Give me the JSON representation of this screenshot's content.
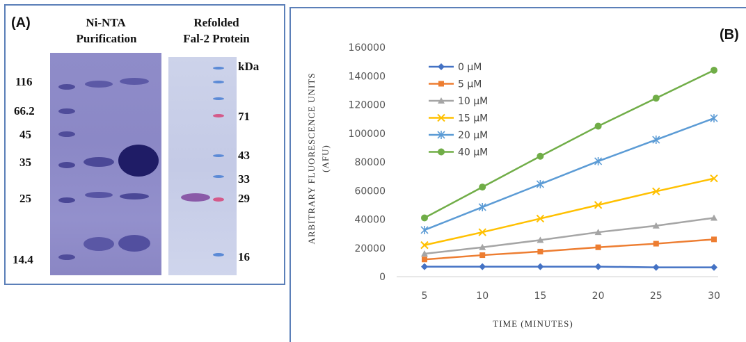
{
  "panel_a": {
    "label": "(A)",
    "title_left_1": "Ni-NTA",
    "title_left_2": "Purification",
    "title_right_1": "Refolded",
    "title_right_2": "Fal-2  Protein",
    "left_markers": [
      "116",
      "66.2",
      "45",
      "35",
      "25",
      "14.4"
    ],
    "right_markers": [
      "kDa",
      "71",
      "43",
      "33",
      "29",
      "16"
    ]
  },
  "panel_b": {
    "label": "(B)"
  },
  "chart_data": {
    "type": "line",
    "title": "",
    "xlabel": "TIME  (MINUTES)",
    "ylabel": "ARBITRARY   FLUORESCENCE   UNITS",
    "ylabel2": "(AFU)",
    "x": [
      5,
      10,
      15,
      20,
      25,
      30
    ],
    "xticks": [
      "5",
      "10",
      "15",
      "20",
      "25",
      "30"
    ],
    "ylim": [
      0,
      160000
    ],
    "yticks": [
      "0",
      "20000",
      "40000",
      "60000",
      "80000",
      "100000",
      "120000",
      "140000",
      "160000"
    ],
    "grid": false,
    "legend_position": "top-left",
    "series": [
      {
        "name": "0 μM",
        "color": "#4472c4",
        "marker": "diamond",
        "values": [
          7000,
          7000,
          7000,
          7000,
          6500,
          6500
        ]
      },
      {
        "name": "5 μM",
        "color": "#ed7d31",
        "marker": "square",
        "values": [
          12000,
          15000,
          17500,
          20500,
          23000,
          26000
        ]
      },
      {
        "name": "10 μM",
        "color": "#a5a5a5",
        "marker": "triangle",
        "values": [
          16000,
          20500,
          25500,
          31000,
          35500,
          41000
        ]
      },
      {
        "name": "15 μM",
        "color": "#ffc000",
        "marker": "x",
        "values": [
          22000,
          31000,
          40500,
          50000,
          59500,
          68500
        ]
      },
      {
        "name": "20 μM",
        "color": "#5b9bd5",
        "marker": "star",
        "values": [
          32500,
          48500,
          64500,
          80500,
          95500,
          110500
        ]
      },
      {
        "name": "40 μM",
        "color": "#70ad47",
        "marker": "circle",
        "values": [
          41000,
          62500,
          84000,
          105000,
          124500,
          144000
        ]
      }
    ]
  }
}
